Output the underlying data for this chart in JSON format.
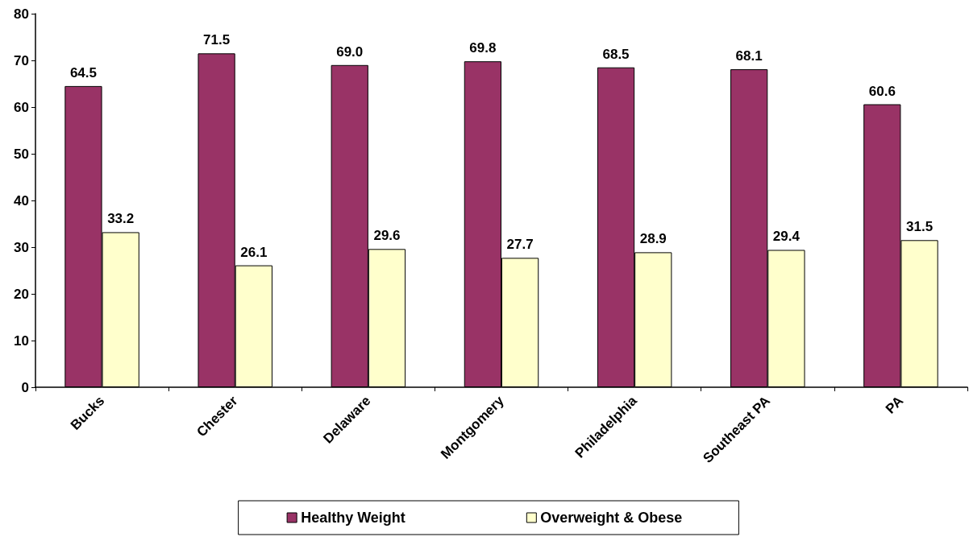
{
  "chart_data": {
    "type": "bar",
    "categories": [
      "Bucks",
      "Chester",
      "Delaware",
      "Montgomery",
      "Philadelphia",
      "Southeast PA",
      "PA"
    ],
    "series": [
      {
        "name": "Healthy Weight",
        "color": "#993366",
        "values": [
          64.5,
          71.5,
          69.0,
          69.8,
          68.5,
          68.1,
          60.6
        ],
        "value_labels": [
          "64.5",
          "71.5",
          "69.0",
          "69.8",
          "68.5",
          "68.1",
          "60.6"
        ]
      },
      {
        "name": "Overweight & Obese",
        "color": "#ffffcc",
        "values": [
          33.2,
          26.1,
          29.6,
          27.7,
          28.9,
          29.4,
          31.5
        ],
        "value_labels": [
          "33.2",
          "26.1",
          "29.6",
          "27.7",
          "28.9",
          "29.4",
          "31.5"
        ]
      }
    ],
    "ylim": [
      0,
      80
    ],
    "yticks": [
      0,
      10,
      20,
      30,
      40,
      50,
      60,
      70,
      80
    ],
    "grid": false,
    "legend": "bottom"
  }
}
